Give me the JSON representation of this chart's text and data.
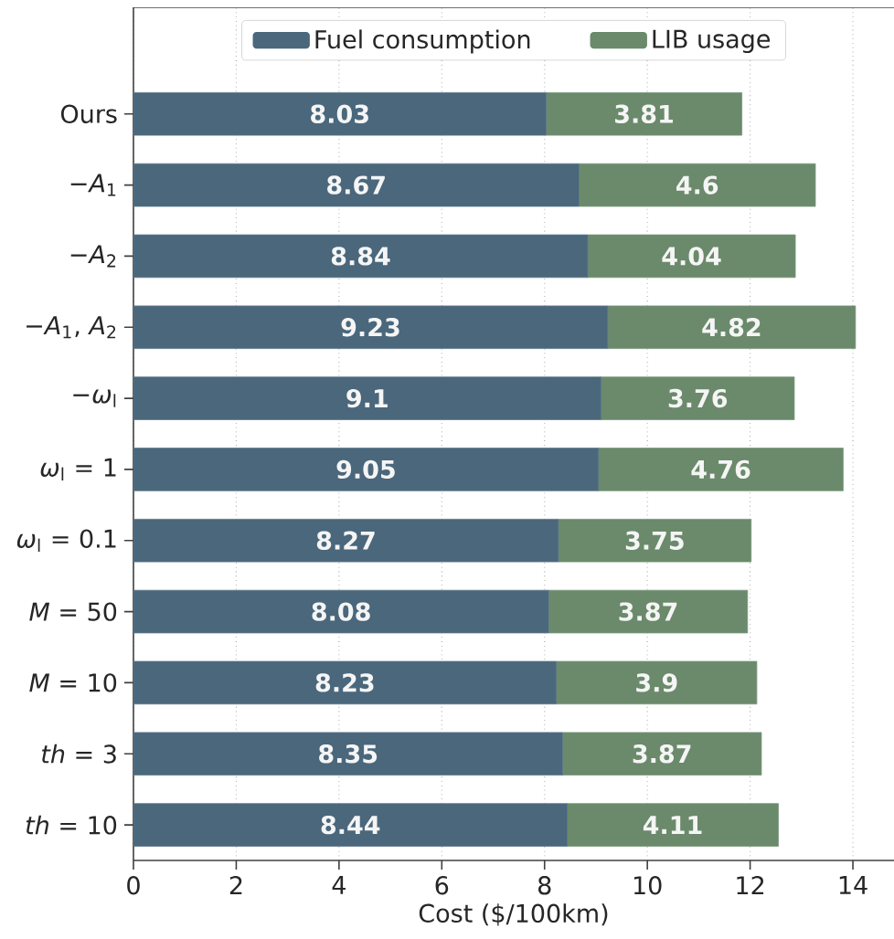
{
  "chart_data": {
    "type": "bar",
    "orientation": "horizontal",
    "stacked": true,
    "categories": [
      "Ours",
      "−*A*$_{1}$",
      "−*A*$_{2}$",
      "−*A*$_{1}$, *A*$_{2}$",
      "−*ω*$_{l}$",
      "*ω*$_{l}$ = 1",
      "*ω*$_{l}$ = 0.1",
      "*M* = 50",
      "*M* = 10",
      "*th* = 3",
      "*th* = 10"
    ],
    "series": [
      {
        "name": "Fuel consumption",
        "color": "#4a677c",
        "values": [
          8.03,
          8.67,
          8.84,
          9.23,
          9.1,
          9.05,
          8.27,
          8.08,
          8.23,
          8.35,
          8.44
        ]
      },
      {
        "name": "LIB usage",
        "color": "#6a8a6b",
        "values": [
          3.81,
          4.6,
          4.04,
          4.82,
          3.76,
          4.76,
          3.75,
          3.87,
          3.9,
          3.87,
          4.11
        ]
      }
    ],
    "xlabel": "Cost ($/100km)",
    "xlim": [
      0,
      14.8
    ],
    "xticks": [
      0,
      2,
      4,
      6,
      8,
      10,
      12,
      14
    ],
    "grid": "x",
    "legend": "top",
    "data_labels": true
  }
}
